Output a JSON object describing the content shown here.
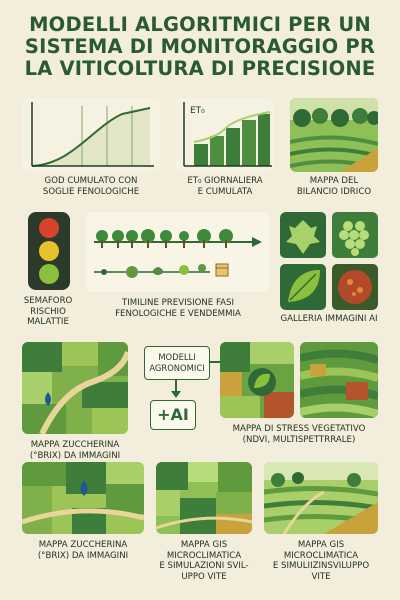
{
  "title": {
    "line1": "MODELLI ALGORITMICI PER UN",
    "line2": "SISTEMA DI MONITORAGGIO PR",
    "line3": "LA VITICOLTURA DI PRECISIONE"
  },
  "gdd": {
    "cap1": "GOD CUMULATO CON",
    "cap2": "SOGLIE FENOLOGICHE"
  },
  "et0": {
    "axis": "ET₀",
    "cap1": "ET₀ GIORNALIERA",
    "cap2": "E CUMULATA"
  },
  "water": {
    "cap1": "MAPPA DEL",
    "cap2": "BILANCIO IDRICO"
  },
  "traffic": {
    "cap1": "SEMAFORO",
    "cap2": "RISCHIO",
    "cap3": "MALATTIE"
  },
  "timeline": {
    "cap1": "TIMILINE PREVISIONE FASI",
    "cap2": "FENOLOGICHE E VENDEMMIA"
  },
  "gallery": {
    "cap1": "GALLERIA IMMAGINI AI"
  },
  "sugar1": {
    "cap1": "MAPPA ZUCCHERINA",
    "cap2": "(°BRIX) DA IMMAGINI"
  },
  "models": {
    "box": "MODELLI",
    "box2": "AGRONOMICI",
    "ai": "+AI"
  },
  "stress": {
    "cap1": "MAPPA DI STRESS VEGETATIVO",
    "cap2": "(NDVI, MULTISPETTRRALE)"
  },
  "sugar2": {
    "cap1": "MAPPA ZUCCHERINA",
    "cap2": "(°BRIX) DA IMMAGINI"
  },
  "gis1": {
    "cap1": "MAPPA GIS",
    "cap2": "MICROCLIMATICA",
    "cap3": "E SIMULAZIONI SVIL-",
    "cap4": "UPPO VITE"
  },
  "gis2": {
    "cap1": "MAPPA GIS",
    "cap2": "MICROCLIMATICA",
    "cap3": "E SIMULIIZINSVILUPPO",
    "cap4": "VITE"
  },
  "colors": {
    "dark_green": "#2f6a36",
    "mid_green": "#5f9a3f",
    "light_green": "#9cc457",
    "cream": "#f3eedc",
    "ochre": "#c9a23c",
    "water_blue": "#1f5a8a"
  }
}
